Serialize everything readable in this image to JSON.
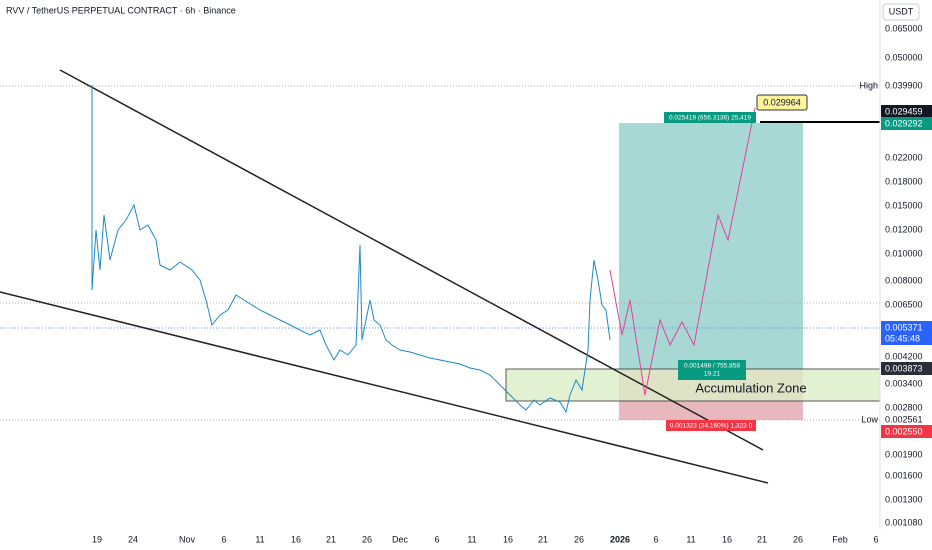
{
  "header": {
    "title": "RVV / TetherUS PERPETUAL CONTRACT · 6h · Binance",
    "currency": "USDT"
  },
  "price_axis": [
    "0.065000",
    "0.050000",
    "0.022000",
    "0.018000",
    "0.015000",
    "0.012000",
    "0.010000",
    "0.008000",
    "0.006500",
    "0.004200",
    "0.003400",
    "0.002800",
    "0.001900",
    "0.001600",
    "0.001300",
    "0.001080"
  ],
  "price_tags": {
    "high_label": "High",
    "high": "0.039900",
    "target_black": "0.029459",
    "target_green": "0.029292",
    "last": "0.005371",
    "countdown": "05:45:48",
    "entry": "0.003873",
    "low_label": "Low",
    "low": "0.002561",
    "stop": "0.002550"
  },
  "time_axis": [
    "19",
    "24",
    "Nov",
    "6",
    "11",
    "16",
    "21",
    "26",
    "Dec",
    "6",
    "11",
    "16",
    "21",
    "26",
    "2026",
    "6",
    "11",
    "16",
    "21",
    "26",
    "Feb",
    "6"
  ],
  "annotations": {
    "target_price": "0.029964",
    "profit": "0.025419 (656.3136) 25,419",
    "position_line1": "0.001498 / 755.858",
    "position_line2": "19.21",
    "zone": "Accumulation Zone",
    "loss": "0.001323 (34.160%) 1,323 0"
  }
}
